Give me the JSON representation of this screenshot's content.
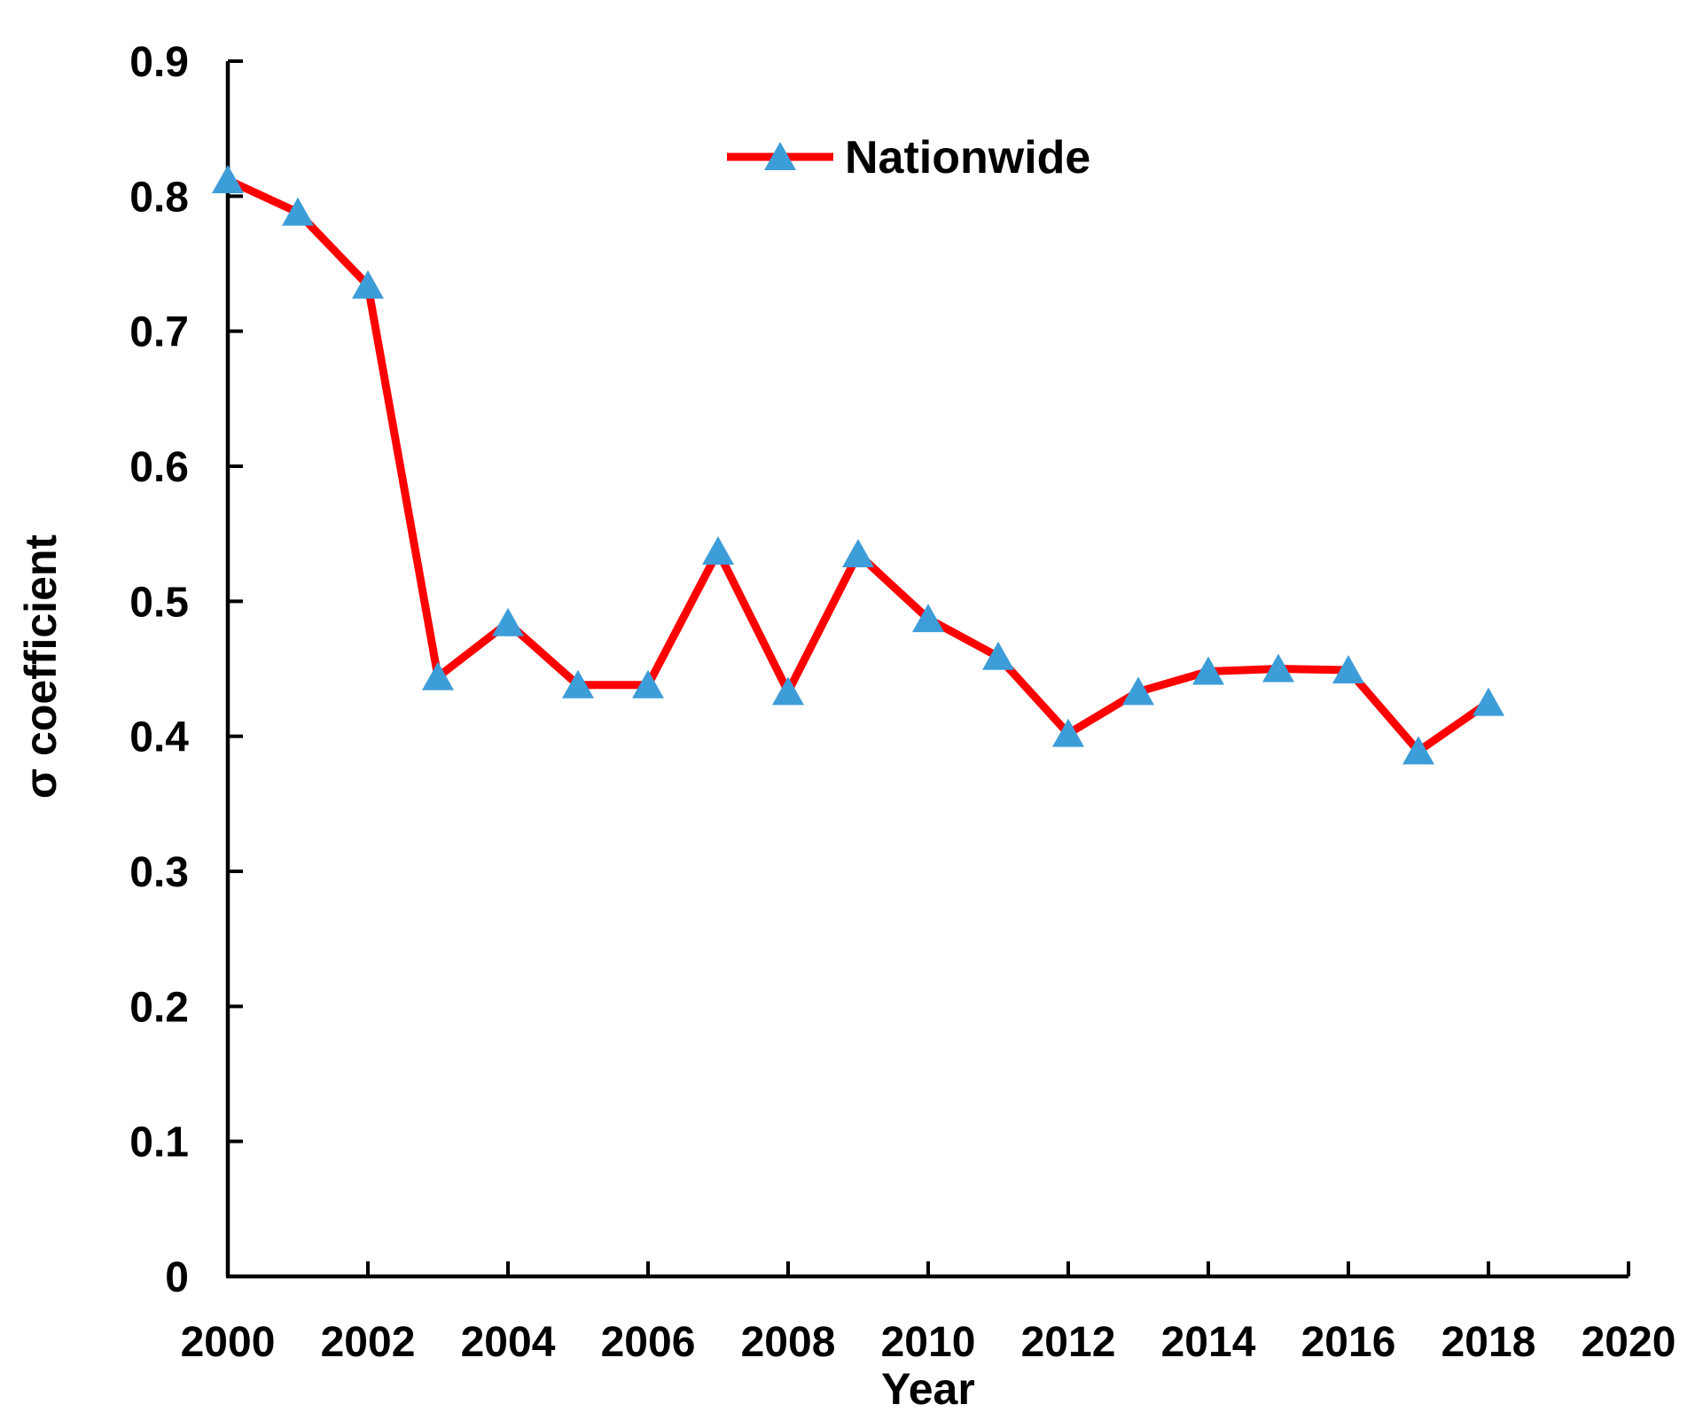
{
  "axes": {
    "x_label": "Year",
    "y_label": "σ coefficient"
  },
  "legend": {
    "label": "Nationwide"
  },
  "colors": {
    "line": "#FF0000",
    "marker": "#3D9DD8",
    "axis": "#000000",
    "text": "#000000",
    "background": "#FFFFFF"
  },
  "chart_data": {
    "type": "line",
    "title": "",
    "x": [
      2000,
      2001,
      2002,
      2003,
      2004,
      2005,
      2006,
      2007,
      2008,
      2009,
      2010,
      2011,
      2012,
      2013,
      2014,
      2015,
      2016,
      2017,
      2018
    ],
    "series": [
      {
        "name": "Nationwide",
        "color": "#FF0000",
        "marker": "triangle-up",
        "marker_color": "#3D9DD8",
        "values": [
          0.812,
          0.788,
          0.734,
          0.444,
          0.484,
          0.438,
          0.438,
          0.537,
          0.433,
          0.535,
          0.487,
          0.459,
          0.402,
          0.433,
          0.448,
          0.45,
          0.449,
          0.389,
          0.425
        ]
      }
    ],
    "xlabel": "Year",
    "ylabel": "σ coefficient",
    "xlim": [
      2000,
      2020
    ],
    "ylim": [
      0,
      0.9
    ],
    "x_ticks": [
      2000,
      2002,
      2004,
      2006,
      2008,
      2010,
      2012,
      2014,
      2016,
      2018,
      2020
    ],
    "y_ticks": [
      "0",
      "0.1",
      "0.2",
      "0.3",
      "0.4",
      "0.5",
      "0.6",
      "0.7",
      "0.8",
      "0.9"
    ],
    "grid": false,
    "legend_position": "top-center"
  }
}
